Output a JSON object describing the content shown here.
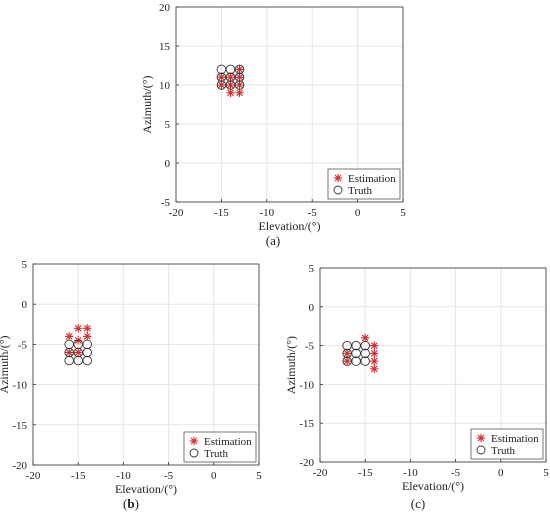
{
  "colors": {
    "estimation": "#d62728",
    "truth": "#333333",
    "grid": "#e6e6e6",
    "axis": "#333333"
  },
  "chart_data": [
    {
      "type": "scatter",
      "panel": "a",
      "caption": "(a)",
      "xlabel": "Elevation/(°)",
      "ylabel": "Azimuth/(°)",
      "xlim": [
        -20,
        5
      ],
      "ylim": [
        -5,
        20
      ],
      "xticks": [
        "-20",
        "-15",
        "-10",
        "-5",
        "0",
        "5"
      ],
      "yticks": [
        "-5",
        "0",
        "5",
        "10",
        "15",
        "20"
      ],
      "grid": true,
      "legend_position": "bottom-right",
      "series": [
        {
          "name": "Estimation",
          "marker": "asterisk",
          "x": [
            -15,
            -15,
            -14,
            -14,
            -14,
            -13,
            -13,
            -13,
            -13
          ],
          "y": [
            10,
            11,
            10,
            11,
            9,
            12,
            11,
            10,
            9
          ]
        },
        {
          "name": "Truth",
          "marker": "circle",
          "x": [
            -15,
            -15,
            -15,
            -14,
            -14,
            -14,
            -13,
            -13,
            -13
          ],
          "y": [
            10,
            11,
            12,
            10,
            11,
            12,
            10,
            11,
            12
          ]
        }
      ]
    },
    {
      "type": "scatter",
      "panel": "b",
      "caption_open": "(",
      "caption_letter": "b",
      "caption_close": ")",
      "xlabel": "Elevation/(°)",
      "ylabel": "Azimuth/(°)",
      "xlim": [
        -20,
        5
      ],
      "ylim": [
        -20,
        5
      ],
      "xticks": [
        "-20",
        "-15",
        "-10",
        "-5",
        "0",
        "5"
      ],
      "yticks": [
        "-20",
        "-15",
        "-10",
        "-5",
        "0",
        "5"
      ],
      "grid": true,
      "legend_position": "bottom-right",
      "series": [
        {
          "name": "Estimation",
          "marker": "asterisk",
          "x": [
            -16,
            -16,
            -15,
            -15,
            -15,
            -14,
            -14
          ],
          "y": [
            -4,
            -6,
            -3,
            -4.5,
            -6,
            -3,
            -4
          ]
        },
        {
          "name": "Truth",
          "marker": "circle",
          "x": [
            -16,
            -16,
            -16,
            -15,
            -15,
            -15,
            -14,
            -14,
            -14
          ],
          "y": [
            -5,
            -6,
            -7,
            -5,
            -6,
            -7,
            -5,
            -6,
            -7
          ]
        }
      ]
    },
    {
      "type": "scatter",
      "panel": "c",
      "caption": "(c)",
      "xlabel": "Elevation/(°)",
      "ylabel": "Azimuth/(°)",
      "xlim": [
        -20,
        5
      ],
      "ylim": [
        -20,
        5
      ],
      "xticks": [
        "-20",
        "-15",
        "-10",
        "-5",
        "0",
        "5"
      ],
      "yticks": [
        "-20",
        "-15",
        "-10",
        "-5",
        "0",
        "5"
      ],
      "grid": true,
      "legend_position": "bottom-right",
      "series": [
        {
          "name": "Estimation",
          "marker": "asterisk",
          "x": [
            -17,
            -17,
            -15,
            -14,
            -14,
            -14,
            -14
          ],
          "y": [
            -6,
            -7,
            -4,
            -5,
            -6,
            -7,
            -8
          ]
        },
        {
          "name": "Truth",
          "marker": "circle",
          "x": [
            -17,
            -17,
            -17,
            -16,
            -16,
            -16,
            -15,
            -15,
            -15
          ],
          "y": [
            -5,
            -6,
            -7,
            -5,
            -6,
            -7,
            -5,
            -6,
            -7
          ]
        }
      ]
    }
  ]
}
